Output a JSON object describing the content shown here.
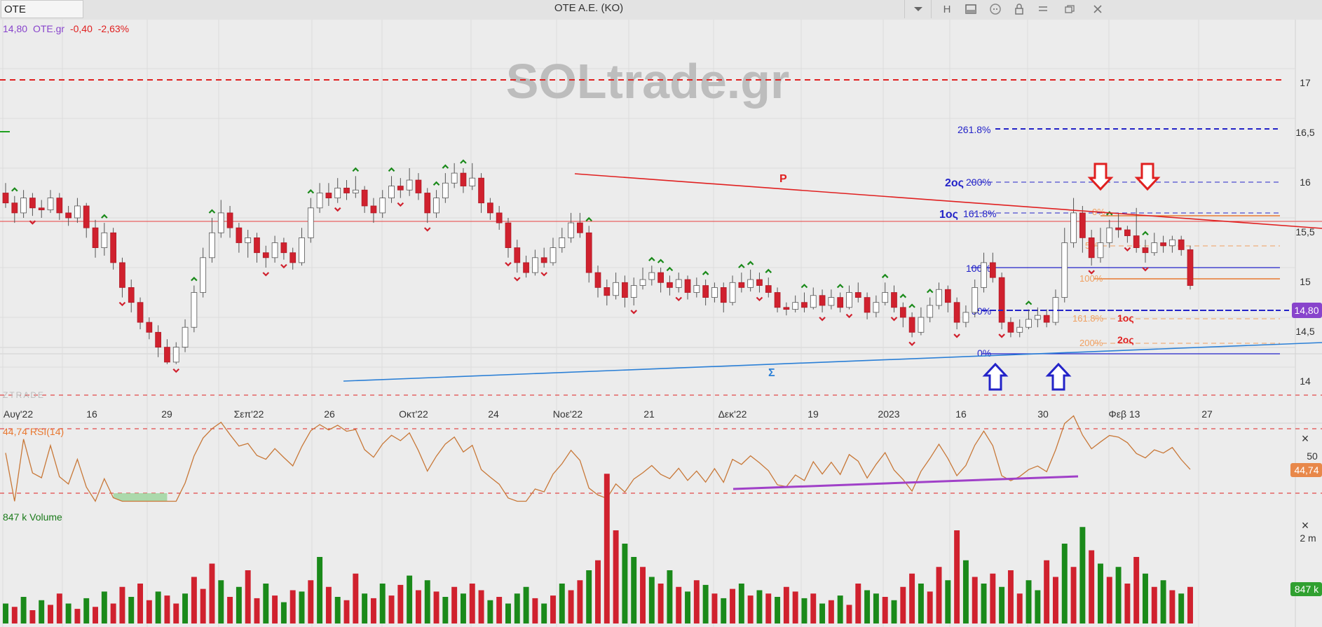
{
  "window": {
    "symbol": "OTE",
    "title": "OTE A.E. (KO)",
    "toolbar": [
      "dropdown-icon",
      "H",
      "panel-icon",
      "comment-icon",
      "lock-icon",
      "minimize-icon",
      "restore-icon",
      "close-icon"
    ]
  },
  "header": {
    "price": "14,80",
    "name": "OTE.gr",
    "change": "-0,40",
    "change_pct": "-2,63%"
  },
  "watermark": "SOLtrade.gr",
  "price_axis": {
    "ticks": [
      "17",
      "16,5",
      "16",
      "15,5",
      "15",
      "14,5",
      "14"
    ],
    "last_tag": "14,80"
  },
  "time_axis": {
    "labels": [
      "Αυγ'22",
      "16",
      "29",
      "Σεπ'22",
      "26",
      "Οκτ'22",
      "24",
      "Νοε'22",
      "21",
      "Δεκ'22",
      "19",
      "2023",
      "16",
      "30",
      "Φεβ 13",
      "27"
    ]
  },
  "annotations": {
    "resistance_label": "P",
    "support_label": "Σ",
    "fib_blue": [
      "261.8%",
      "2ος",
      "200%",
      "1ος",
      "161.8%",
      "100%",
      "50%",
      "0%"
    ],
    "fib_orange": [
      "0%",
      "50%",
      "100%",
      "161.8%",
      "200%"
    ],
    "targets_red": [
      "1ος",
      "2ος"
    ],
    "footer_tag": "ZTRADE"
  },
  "rsi": {
    "label": "44,74 RSI(14)",
    "tick": "50",
    "value_tag": "44,74",
    "close": "×"
  },
  "volume": {
    "label": "847 k Volume",
    "tick": "2 m",
    "value_tag": "847 k",
    "close": "×"
  },
  "colors": {
    "up": "#1a8a1a",
    "down": "#d0212e",
    "resistance": "#e02020",
    "support": "#2a7fd6",
    "fib_blue": "#2323c8",
    "fib_orange": "#f0a060",
    "rsi_line": "#c87838",
    "rsi_trend": "#a040c8",
    "price_tag": "#8844cc"
  },
  "chart_data": {
    "type": "candlestick",
    "price_axis_range": [
      13.9,
      17.4
    ],
    "last_price": 14.8,
    "levels": {
      "red_dashed_top": 17.05,
      "resistance_horizontal": 15.62,
      "last_price_dashed": 14.8,
      "bottom_dashed": 13.92
    },
    "resistance_trendline": {
      "label": "P",
      "from": [
        "Νοε'22",
        16.1
      ],
      "to": [
        "27",
        15.55
      ]
    },
    "support_trendline": {
      "label": "Σ",
      "from": [
        "26",
        14.03
      ],
      "to": [
        "27",
        14.4
      ]
    },
    "rsi": {
      "period": 14,
      "last": 44.74
    },
    "volume": {
      "last": "847 k"
    },
    "candles": [
      [
        15.75,
        15.65,
        15.85,
        15.6
      ],
      [
        15.65,
        15.55,
        15.72,
        15.45
      ],
      [
        15.55,
        15.7,
        15.78,
        15.5
      ],
      [
        15.7,
        15.6,
        15.75,
        15.52
      ],
      [
        15.6,
        15.58,
        15.68,
        15.5
      ],
      [
        15.58,
        15.7,
        15.78,
        15.55
      ],
      [
        15.7,
        15.55,
        15.75,
        15.48
      ],
      [
        15.55,
        15.5,
        15.62,
        15.42
      ],
      [
        15.5,
        15.62,
        15.7,
        15.45
      ],
      [
        15.62,
        15.4,
        15.65,
        15.3
      ],
      [
        15.4,
        15.2,
        15.48,
        15.1
      ],
      [
        15.2,
        15.35,
        15.45,
        15.12
      ],
      [
        15.35,
        15.05,
        15.4,
        14.98
      ],
      [
        15.05,
        14.8,
        15.1,
        14.7
      ],
      [
        14.8,
        14.65,
        14.88,
        14.55
      ],
      [
        14.65,
        14.45,
        14.7,
        14.38
      ],
      [
        14.45,
        14.35,
        14.5,
        14.28
      ],
      [
        14.35,
        14.2,
        14.42,
        14.1
      ],
      [
        14.2,
        14.05,
        14.28,
        14.03
      ],
      [
        14.05,
        14.2,
        14.25,
        14.03
      ],
      [
        14.2,
        14.4,
        14.48,
        14.15
      ],
      [
        14.4,
        14.75,
        14.82,
        14.35
      ],
      [
        14.75,
        15.1,
        15.2,
        14.7
      ],
      [
        15.1,
        15.35,
        15.5,
        15.05
      ],
      [
        15.35,
        15.55,
        15.68,
        15.3
      ],
      [
        15.55,
        15.4,
        15.62,
        15.3
      ],
      [
        15.4,
        15.25,
        15.45,
        15.15
      ],
      [
        15.25,
        15.3,
        15.38,
        15.1
      ],
      [
        15.3,
        15.15,
        15.35,
        15.05
      ],
      [
        15.15,
        15.1,
        15.22,
        15.0
      ],
      [
        15.1,
        15.25,
        15.32,
        15.05
      ],
      [
        15.25,
        15.15,
        15.3,
        15.08
      ],
      [
        15.15,
        15.05,
        15.2,
        14.98
      ],
      [
        15.05,
        15.3,
        15.4,
        15.02
      ],
      [
        15.3,
        15.6,
        15.7,
        15.25
      ],
      [
        15.6,
        15.75,
        15.85,
        15.55
      ],
      [
        15.75,
        15.7,
        15.85,
        15.62
      ],
      [
        15.7,
        15.8,
        15.9,
        15.65
      ],
      [
        15.8,
        15.75,
        15.88,
        15.68
      ],
      [
        15.75,
        15.78,
        15.92,
        15.7
      ],
      [
        15.78,
        15.62,
        15.82,
        15.55
      ],
      [
        15.62,
        15.55,
        15.7,
        15.45
      ],
      [
        15.55,
        15.7,
        15.78,
        15.5
      ],
      [
        15.7,
        15.82,
        15.92,
        15.65
      ],
      [
        15.82,
        15.78,
        15.9,
        15.7
      ],
      [
        15.78,
        15.88,
        16.0,
        15.72
      ],
      [
        15.88,
        15.75,
        15.95,
        15.68
      ],
      [
        15.75,
        15.55,
        15.8,
        15.45
      ],
      [
        15.55,
        15.7,
        15.78,
        15.5
      ],
      [
        15.7,
        15.85,
        15.95,
        15.65
      ],
      [
        15.85,
        15.95,
        16.05,
        15.8
      ],
      [
        15.95,
        15.82,
        16.0,
        15.75
      ],
      [
        15.82,
        15.9,
        16.05,
        15.78
      ],
      [
        15.9,
        15.65,
        15.95,
        15.55
      ],
      [
        15.65,
        15.55,
        15.7,
        15.48
      ],
      [
        15.55,
        15.45,
        15.62,
        15.38
      ],
      [
        15.45,
        15.2,
        15.5,
        15.1
      ],
      [
        15.2,
        15.05,
        15.28,
        14.95
      ],
      [
        15.05,
        14.95,
        15.12,
        14.9
      ],
      [
        14.95,
        15.1,
        15.18,
        14.92
      ],
      [
        15.1,
        15.05,
        15.2,
        15.0
      ],
      [
        15.05,
        15.2,
        15.3,
        15.02
      ],
      [
        15.2,
        15.3,
        15.4,
        15.15
      ],
      [
        15.3,
        15.45,
        15.55,
        15.25
      ],
      [
        15.45,
        15.35,
        15.55,
        15.3
      ],
      [
        15.35,
        14.95,
        15.42,
        14.85
      ],
      [
        14.95,
        14.8,
        15.02,
        14.7
      ],
      [
        14.8,
        14.72,
        14.88,
        14.62
      ],
      [
        14.72,
        14.85,
        14.95,
        14.68
      ],
      [
        14.85,
        14.7,
        14.92,
        14.6
      ],
      [
        14.7,
        14.82,
        14.9,
        14.62
      ],
      [
        14.82,
        14.88,
        15.0,
        14.78
      ],
      [
        14.88,
        14.95,
        15.02,
        14.82
      ],
      [
        14.95,
        14.85,
        15.0,
        14.75
      ],
      [
        14.85,
        14.8,
        14.92,
        14.72
      ],
      [
        14.8,
        14.88,
        14.95,
        14.75
      ],
      [
        14.88,
        14.75,
        14.92,
        14.68
      ],
      [
        14.75,
        14.82,
        14.9,
        14.7
      ],
      [
        14.82,
        14.7,
        14.88,
        14.62
      ],
      [
        14.7,
        14.8,
        14.85,
        14.65
      ],
      [
        14.8,
        14.65,
        14.85,
        14.55
      ],
      [
        14.65,
        14.85,
        14.92,
        14.62
      ],
      [
        14.85,
        14.8,
        14.95,
        14.75
      ],
      [
        14.8,
        14.88,
        14.98,
        14.76
      ],
      [
        14.88,
        14.82,
        14.95,
        14.75
      ],
      [
        14.82,
        14.75,
        14.9,
        14.7
      ],
      [
        14.75,
        14.6,
        14.8,
        14.55
      ],
      [
        14.6,
        14.58,
        14.65,
        14.52
      ],
      [
        14.58,
        14.65,
        14.72,
        14.55
      ],
      [
        14.65,
        14.6,
        14.75,
        14.55
      ],
      [
        14.6,
        14.72,
        14.8,
        14.58
      ],
      [
        14.72,
        14.62,
        14.78,
        14.55
      ],
      [
        14.62,
        14.7,
        14.78,
        14.58
      ],
      [
        14.7,
        14.6,
        14.75,
        14.55
      ],
      [
        14.6,
        14.75,
        14.82,
        14.58
      ],
      [
        14.75,
        14.7,
        14.85,
        14.65
      ],
      [
        14.7,
        14.55,
        14.75,
        14.48
      ],
      [
        14.55,
        14.65,
        14.72,
        14.5
      ],
      [
        14.65,
        14.75,
        14.85,
        14.62
      ],
      [
        14.75,
        14.6,
        14.82,
        14.55
      ],
      [
        14.6,
        14.5,
        14.65,
        14.4
      ],
      [
        14.5,
        14.35,
        14.55,
        14.3
      ],
      [
        14.35,
        14.5,
        14.6,
        14.32
      ],
      [
        14.5,
        14.62,
        14.7,
        14.45
      ],
      [
        14.62,
        14.78,
        14.85,
        14.58
      ],
      [
        14.78,
        14.65,
        14.82,
        14.55
      ],
      [
        14.65,
        14.45,
        14.7,
        14.38
      ],
      [
        14.45,
        14.55,
        14.62,
        14.4
      ],
      [
        14.55,
        14.8,
        14.88,
        14.5
      ],
      [
        14.8,
        15.05,
        15.15,
        14.75
      ],
      [
        15.05,
        14.9,
        15.15,
        14.85
      ],
      [
        14.9,
        14.45,
        14.95,
        14.38
      ],
      [
        14.45,
        14.35,
        14.5,
        14.3
      ],
      [
        14.35,
        14.4,
        14.48,
        14.3
      ],
      [
        14.4,
        14.48,
        14.58,
        14.38
      ],
      [
        14.48,
        14.52,
        14.6,
        14.4
      ],
      [
        14.52,
        14.45,
        14.58,
        14.4
      ],
      [
        14.45,
        14.7,
        14.78,
        14.42
      ],
      [
        14.7,
        15.25,
        15.4,
        14.65
      ],
      [
        15.25,
        15.55,
        15.7,
        15.2
      ],
      [
        15.55,
        15.3,
        15.62,
        15.15
      ],
      [
        15.3,
        15.1,
        15.38,
        15.02
      ],
      [
        15.1,
        15.25,
        15.4,
        15.05
      ],
      [
        15.25,
        15.4,
        15.48,
        15.2
      ],
      [
        15.4,
        15.38,
        15.55,
        15.3
      ],
      [
        15.38,
        15.32,
        15.42,
        15.25
      ],
      [
        15.32,
        15.2,
        15.6,
        15.15
      ],
      [
        15.2,
        15.15,
        15.28,
        15.05
      ],
      [
        15.15,
        15.25,
        15.35,
        15.12
      ],
      [
        15.25,
        15.22,
        15.32,
        15.15
      ],
      [
        15.22,
        15.28,
        15.32,
        15.15
      ],
      [
        15.28,
        15.18,
        15.32,
        15.12
      ],
      [
        15.18,
        14.82,
        15.22,
        14.78
      ]
    ],
    "volumes": [
      [
        30,
        "up"
      ],
      [
        25,
        "down"
      ],
      [
        40,
        "up"
      ],
      [
        20,
        "down"
      ],
      [
        35,
        "up"
      ],
      [
        28,
        "down"
      ],
      [
        45,
        "down"
      ],
      [
        30,
        "up"
      ],
      [
        22,
        "down"
      ],
      [
        38,
        "up"
      ],
      [
        25,
        "down"
      ],
      [
        48,
        "up"
      ],
      [
        30,
        "down"
      ],
      [
        55,
        "down"
      ],
      [
        40,
        "up"
      ],
      [
        60,
        "down"
      ],
      [
        35,
        "down"
      ],
      [
        48,
        "up"
      ],
      [
        42,
        "down"
      ],
      [
        30,
        "down"
      ],
      [
        45,
        "up"
      ],
      [
        70,
        "down"
      ],
      [
        52,
        "down"
      ],
      [
        90,
        "down"
      ],
      [
        65,
        "up"
      ],
      [
        40,
        "down"
      ],
      [
        55,
        "up"
      ],
      [
        80,
        "down"
      ],
      [
        38,
        "down"
      ],
      [
        60,
        "up"
      ],
      [
        42,
        "down"
      ],
      [
        32,
        "up"
      ],
      [
        50,
        "down"
      ],
      [
        48,
        "up"
      ],
      [
        65,
        "down"
      ],
      [
        100,
        "up"
      ],
      [
        55,
        "down"
      ],
      [
        40,
        "up"
      ],
      [
        35,
        "down"
      ],
      [
        75,
        "down"
      ],
      [
        45,
        "up"
      ],
      [
        38,
        "down"
      ],
      [
        60,
        "up"
      ],
      [
        42,
        "down"
      ],
      [
        58,
        "down"
      ],
      [
        72,
        "up"
      ],
      [
        50,
        "down"
      ],
      [
        65,
        "up"
      ],
      [
        48,
        "down"
      ],
      [
        40,
        "up"
      ],
      [
        55,
        "down"
      ],
      [
        45,
        "up"
      ],
      [
        60,
        "down"
      ],
      [
        50,
        "down"
      ],
      [
        35,
        "up"
      ],
      [
        40,
        "down"
      ],
      [
        30,
        "up"
      ],
      [
        45,
        "up"
      ],
      [
        55,
        "up"
      ],
      [
        38,
        "down"
      ],
      [
        30,
        "up"
      ],
      [
        42,
        "down"
      ],
      [
        60,
        "up"
      ],
      [
        50,
        "down"
      ],
      [
        65,
        "down"
      ],
      [
        80,
        "up"
      ],
      [
        95,
        "down"
      ],
      [
        225,
        "down"
      ],
      [
        140,
        "red"
      ],
      [
        120,
        "up"
      ],
      [
        100,
        "up"
      ],
      [
        85,
        "down"
      ],
      [
        70,
        "up"
      ],
      [
        60,
        "down"
      ],
      [
        80,
        "up"
      ],
      [
        55,
        "down"
      ],
      [
        48,
        "up"
      ],
      [
        65,
        "down"
      ],
      [
        58,
        "up"
      ],
      [
        45,
        "down"
      ],
      [
        38,
        "up"
      ],
      [
        52,
        "down"
      ],
      [
        60,
        "up"
      ],
      [
        42,
        "down"
      ],
      [
        50,
        "up"
      ],
      [
        45,
        "down"
      ],
      [
        40,
        "up"
      ],
      [
        55,
        "down"
      ],
      [
        48,
        "down"
      ],
      [
        38,
        "up"
      ],
      [
        45,
        "down"
      ],
      [
        30,
        "up"
      ],
      [
        35,
        "down"
      ],
      [
        42,
        "up"
      ],
      [
        28,
        "down"
      ],
      [
        60,
        "down"
      ],
      [
        50,
        "up"
      ],
      [
        45,
        "up"
      ],
      [
        40,
        "down"
      ],
      [
        35,
        "up"
      ],
      [
        55,
        "down"
      ],
      [
        75,
        "down"
      ],
      [
        60,
        "up"
      ],
      [
        48,
        "down"
      ],
      [
        85,
        "down"
      ],
      [
        65,
        "up"
      ],
      [
        140,
        "down"
      ],
      [
        95,
        "up"
      ],
      [
        70,
        "down"
      ],
      [
        60,
        "up"
      ],
      [
        75,
        "down"
      ],
      [
        55,
        "up"
      ],
      [
        80,
        "down"
      ],
      [
        45,
        "down"
      ],
      [
        65,
        "up"
      ],
      [
        50,
        "up"
      ],
      [
        95,
        "down"
      ],
      [
        70,
        "down"
      ],
      [
        120,
        "up"
      ],
      [
        85,
        "down"
      ],
      [
        145,
        "up"
      ],
      [
        110,
        "down"
      ],
      [
        90,
        "up"
      ],
      [
        70,
        "down"
      ],
      [
        85,
        "up"
      ],
      [
        60,
        "down"
      ],
      [
        100,
        "down"
      ],
      [
        75,
        "up"
      ],
      [
        55,
        "down"
      ],
      [
        65,
        "up"
      ],
      [
        50,
        "down"
      ],
      [
        45,
        "up"
      ],
      [
        55,
        "down"
      ]
    ]
  }
}
